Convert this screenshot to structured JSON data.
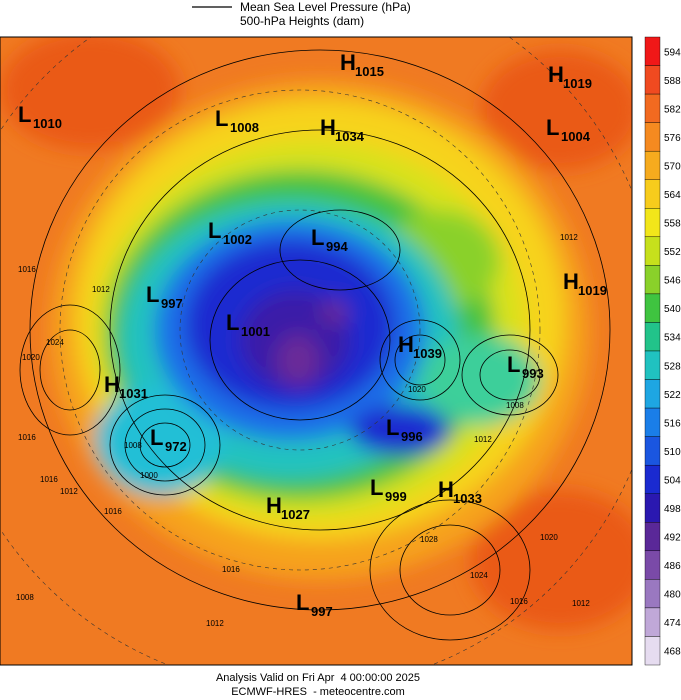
{
  "header": {
    "legend_lines": [
      "Mean Sea Level Pressure (hPa)",
      "500-hPa Heights (dam)"
    ]
  },
  "systems": [
    {
      "letter": "H",
      "value": 1015
    },
    {
      "letter": "H",
      "value": 1019
    },
    {
      "letter": "L",
      "value": 1010
    },
    {
      "letter": "L",
      "value": 1008
    },
    {
      "letter": "H",
      "value": 1034
    },
    {
      "letter": "L",
      "value": 1004
    },
    {
      "letter": "L",
      "value": 1002
    },
    {
      "letter": "L",
      "value": 994
    },
    {
      "letter": "H",
      "value": 1019
    },
    {
      "letter": "L",
      "value": 997
    },
    {
      "letter": "L",
      "value": 1001
    },
    {
      "letter": "H",
      "value": 1039
    },
    {
      "letter": "L",
      "value": 993
    },
    {
      "letter": "H",
      "value": 1031
    },
    {
      "letter": "L",
      "value": 972
    },
    {
      "letter": "L",
      "value": 996
    },
    {
      "letter": "L",
      "value": 999
    },
    {
      "letter": "H",
      "value": 1033
    },
    {
      "letter": "H",
      "value": 1027
    },
    {
      "letter": "L",
      "value": 997
    }
  ],
  "contour_labels": [
    1016,
    1012,
    1020,
    1024,
    1016,
    1016,
    1012,
    1016,
    1000,
    1008,
    1012,
    1020,
    1012,
    1008,
    1016,
    1012,
    1028,
    1024,
    1020,
    1016,
    1012,
    1008
  ],
  "colorbar": {
    "labels": [
      594,
      588,
      582,
      576,
      570,
      564,
      558,
      552,
      546,
      540,
      534,
      528,
      522,
      516,
      510,
      504,
      498,
      492,
      486,
      480,
      474,
      468
    ]
  },
  "footer": {
    "valid": "Analysis Valid on Fri Apr  4 00:00:00 2025",
    "source": "ECMWF-HRES  - meteocentre.com"
  }
}
